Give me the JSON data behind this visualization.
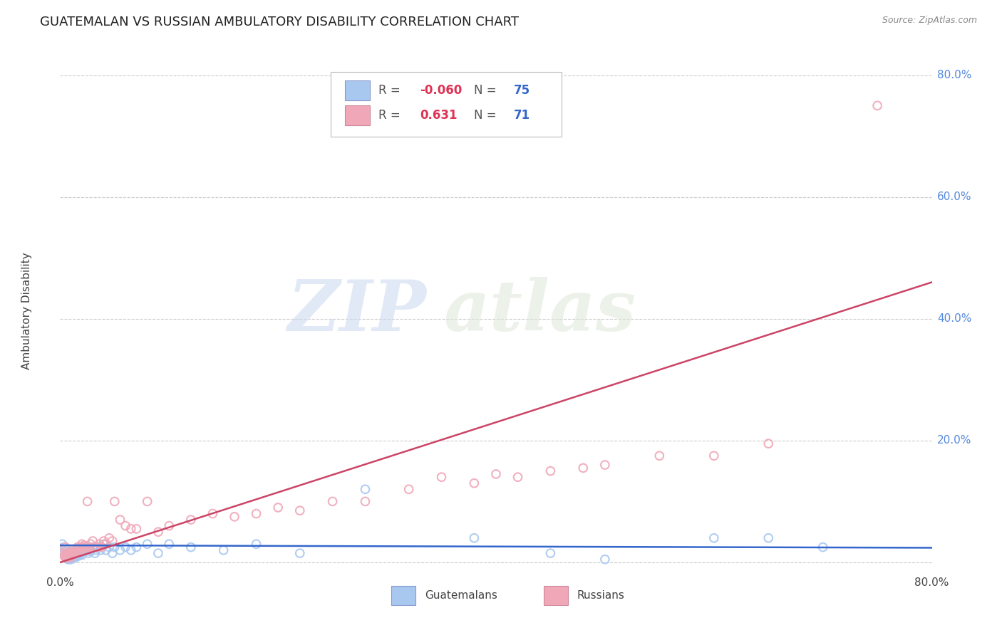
{
  "title": "GUATEMALAN VS RUSSIAN AMBULATORY DISABILITY CORRELATION CHART",
  "source": "Source: ZipAtlas.com",
  "ylabel": "Ambulatory Disability",
  "legend_blue_R": "-0.060",
  "legend_blue_N": "75",
  "legend_pink_R": "0.631",
  "legend_pink_N": "71",
  "legend_label_blue": "Guatemalans",
  "legend_label_pink": "Russians",
  "blue_color": "#a8c8f0",
  "pink_color": "#f0a8b8",
  "blue_line_color": "#3366cc",
  "pink_line_color": "#cc4466",
  "xmin": 0.0,
  "xmax": 0.8,
  "ymin": -0.015,
  "ymax": 0.84,
  "yticks": [
    0.0,
    0.2,
    0.4,
    0.6,
    0.8
  ],
  "ytick_labels": [
    "",
    "20.0%",
    "40.0%",
    "60.0%",
    "80.0%"
  ],
  "watermark_zip": "ZIP",
  "watermark_atlas": "atlas",
  "blue_scatter_x": [
    0.002,
    0.003,
    0.004,
    0.005,
    0.005,
    0.006,
    0.006,
    0.007,
    0.007,
    0.008,
    0.008,
    0.008,
    0.009,
    0.009,
    0.009,
    0.01,
    0.01,
    0.01,
    0.01,
    0.01,
    0.011,
    0.011,
    0.012,
    0.012,
    0.013,
    0.013,
    0.014,
    0.014,
    0.015,
    0.015,
    0.015,
    0.016,
    0.016,
    0.017,
    0.018,
    0.018,
    0.019,
    0.02,
    0.02,
    0.021,
    0.022,
    0.023,
    0.024,
    0.025,
    0.026,
    0.027,
    0.028,
    0.03,
    0.032,
    0.033,
    0.035,
    0.037,
    0.04,
    0.042,
    0.045,
    0.048,
    0.05,
    0.055,
    0.06,
    0.065,
    0.07,
    0.08,
    0.09,
    0.1,
    0.12,
    0.15,
    0.18,
    0.22,
    0.28,
    0.38,
    0.45,
    0.5,
    0.6,
    0.65,
    0.7
  ],
  "blue_scatter_y": [
    0.03,
    0.025,
    0.02,
    0.015,
    0.01,
    0.012,
    0.008,
    0.01,
    0.005,
    0.015,
    0.01,
    0.008,
    0.012,
    0.007,
    0.005,
    0.018,
    0.015,
    0.012,
    0.008,
    0.005,
    0.015,
    0.01,
    0.012,
    0.008,
    0.015,
    0.01,
    0.018,
    0.008,
    0.02,
    0.015,
    0.01,
    0.018,
    0.01,
    0.015,
    0.02,
    0.012,
    0.015,
    0.025,
    0.012,
    0.02,
    0.025,
    0.018,
    0.02,
    0.025,
    0.015,
    0.02,
    0.018,
    0.025,
    0.015,
    0.02,
    0.025,
    0.02,
    0.03,
    0.02,
    0.025,
    0.015,
    0.025,
    0.02,
    0.025,
    0.02,
    0.025,
    0.03,
    0.015,
    0.03,
    0.025,
    0.02,
    0.03,
    0.015,
    0.12,
    0.04,
    0.015,
    0.005,
    0.04,
    0.04,
    0.025
  ],
  "pink_scatter_x": [
    0.002,
    0.003,
    0.004,
    0.005,
    0.005,
    0.006,
    0.006,
    0.007,
    0.007,
    0.008,
    0.008,
    0.009,
    0.009,
    0.01,
    0.01,
    0.011,
    0.012,
    0.013,
    0.014,
    0.015,
    0.015,
    0.016,
    0.017,
    0.018,
    0.019,
    0.02,
    0.021,
    0.022,
    0.023,
    0.024,
    0.025,
    0.026,
    0.027,
    0.028,
    0.03,
    0.032,
    0.034,
    0.036,
    0.038,
    0.04,
    0.042,
    0.045,
    0.048,
    0.05,
    0.055,
    0.06,
    0.065,
    0.07,
    0.08,
    0.09,
    0.1,
    0.12,
    0.14,
    0.16,
    0.18,
    0.2,
    0.22,
    0.25,
    0.28,
    0.32,
    0.35,
    0.38,
    0.4,
    0.42,
    0.45,
    0.48,
    0.5,
    0.55,
    0.6,
    0.65,
    0.75
  ],
  "pink_scatter_y": [
    0.02,
    0.015,
    0.01,
    0.025,
    0.008,
    0.015,
    0.008,
    0.012,
    0.008,
    0.015,
    0.01,
    0.012,
    0.008,
    0.015,
    0.01,
    0.02,
    0.015,
    0.018,
    0.015,
    0.02,
    0.015,
    0.025,
    0.02,
    0.025,
    0.018,
    0.03,
    0.025,
    0.028,
    0.025,
    0.02,
    0.1,
    0.025,
    0.025,
    0.03,
    0.035,
    0.025,
    0.025,
    0.03,
    0.025,
    0.035,
    0.03,
    0.04,
    0.035,
    0.1,
    0.07,
    0.06,
    0.055,
    0.055,
    0.1,
    0.05,
    0.06,
    0.07,
    0.08,
    0.075,
    0.08,
    0.09,
    0.085,
    0.1,
    0.1,
    0.12,
    0.14,
    0.13,
    0.145,
    0.14,
    0.15,
    0.155,
    0.16,
    0.175,
    0.175,
    0.195,
    0.75
  ],
  "blue_line_x": [
    0.0,
    0.8
  ],
  "blue_line_y": [
    0.028,
    0.024
  ],
  "pink_line_x": [
    0.0,
    0.8
  ],
  "pink_line_y": [
    0.0,
    0.46
  ]
}
